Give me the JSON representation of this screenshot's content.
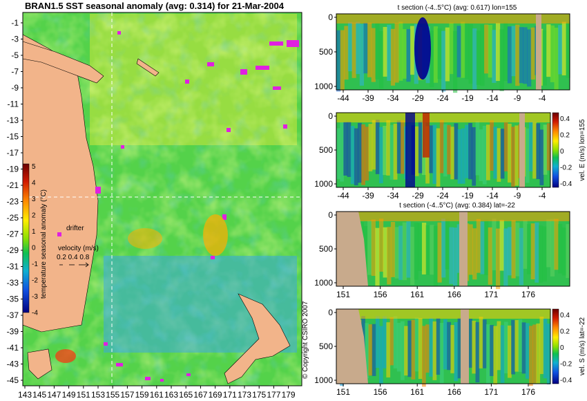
{
  "map": {
    "title": "BRAN1.5 SST seasonal anomaly (avg: 0.314) for 21-Mar-2004",
    "y_ticks": [
      "-1",
      "-3",
      "-5",
      "-7",
      "-9",
      "-11",
      "-13",
      "-15",
      "-17",
      "-19",
      "-21",
      "-23",
      "-25",
      "-27",
      "-29",
      "-31",
      "-33",
      "-35",
      "-37",
      "-39",
      "-41",
      "-43",
      "-45"
    ],
    "x_ticks": [
      "143",
      "145",
      "147",
      "149",
      "151",
      "153",
      "155",
      "157",
      "159",
      "161",
      "163",
      "165",
      "167",
      "169",
      "171",
      "173",
      "175",
      "177",
      "179"
    ],
    "colorbar": {
      "label": "temperature seasonal anomaly (°C)",
      "ticks": [
        "5",
        "4",
        "3",
        "2",
        "1",
        "0",
        "-1",
        "-2",
        "-3",
        "-4"
      ]
    },
    "drifter_label": "drifter",
    "velocity": {
      "label": "velocity (m/s)",
      "scale": "0.2 0.4 0.8"
    },
    "copyright": "© Copyright CSIRO 2007"
  },
  "panels": [
    {
      "title": "t section (-4..5°C) (avg: 0.617) lon=155",
      "y_ticks": [
        "0",
        "500",
        "1000"
      ],
      "x_ticks": [
        "-44",
        "-39",
        "-34",
        "-29",
        "-24",
        "-19",
        "-14",
        "-9",
        "-4"
      ],
      "colorbar_label": ""
    },
    {
      "title": "",
      "y_ticks": [
        "0",
        "500",
        "1000"
      ],
      "x_ticks": [
        "-44",
        "-39",
        "-34",
        "-29",
        "-24",
        "-19",
        "-14",
        "-9",
        "-4"
      ],
      "colorbar_label": "vel. E (m/s) lon=155",
      "colorbar_ticks": [
        "0.4",
        "0.2",
        "0",
        "-0.2",
        "-0.4"
      ]
    },
    {
      "title": "t section (-4..5°C) (avg: 0.384) lat=-22",
      "y_ticks": [
        "0",
        "500",
        "1000"
      ],
      "x_ticks": [
        "151",
        "156",
        "161",
        "166",
        "171",
        "176"
      ],
      "colorbar_label": ""
    },
    {
      "title": "",
      "y_ticks": [
        "0",
        "500",
        "1000"
      ],
      "x_ticks": [
        "151",
        "156",
        "161",
        "166",
        "171",
        "176"
      ],
      "colorbar_label": "vel. S (m/s) lat=-22",
      "colorbar_ticks": [
        "0.4",
        "0.2",
        "0",
        "-0.2",
        "-0.4"
      ]
    }
  ],
  "chart_data": [
    {
      "type": "heatmap",
      "title": "BRAN1.5 SST seasonal anomaly (avg: 0.314) for 21-Mar-2004",
      "x_range": [
        143,
        180
      ],
      "y_range": [
        -46,
        0
      ],
      "colorbar_range": [
        -4,
        5
      ],
      "colorbar_label": "temperature seasonal anomaly (°C)",
      "marker_lon": 155,
      "marker_lat": -22
    },
    {
      "type": "heatmap",
      "title": "t section (-4..5°C) (avg: 0.617) lon=155",
      "x_range": [
        -46,
        -1
      ],
      "y_range": [
        0,
        1050
      ],
      "color_range": [
        -4,
        5
      ]
    },
    {
      "type": "heatmap",
      "colorbar_label": "vel. E (m/s) lon=155",
      "x_range": [
        -46,
        -1
      ],
      "y_range": [
        0,
        1050
      ],
      "color_range": [
        -0.4,
        0.4
      ]
    },
    {
      "type": "heatmap",
      "title": "t section (-4..5°C) (avg: 0.384) lat=-22",
      "x_range": [
        149,
        181
      ],
      "y_range": [
        0,
        1050
      ],
      "color_range": [
        -4,
        5
      ]
    },
    {
      "type": "heatmap",
      "colorbar_label": "vel. S (m/s) lat=-22",
      "x_range": [
        149,
        181
      ],
      "y_range": [
        0,
        1050
      ],
      "color_range": [
        -0.4,
        0.4
      ]
    }
  ]
}
